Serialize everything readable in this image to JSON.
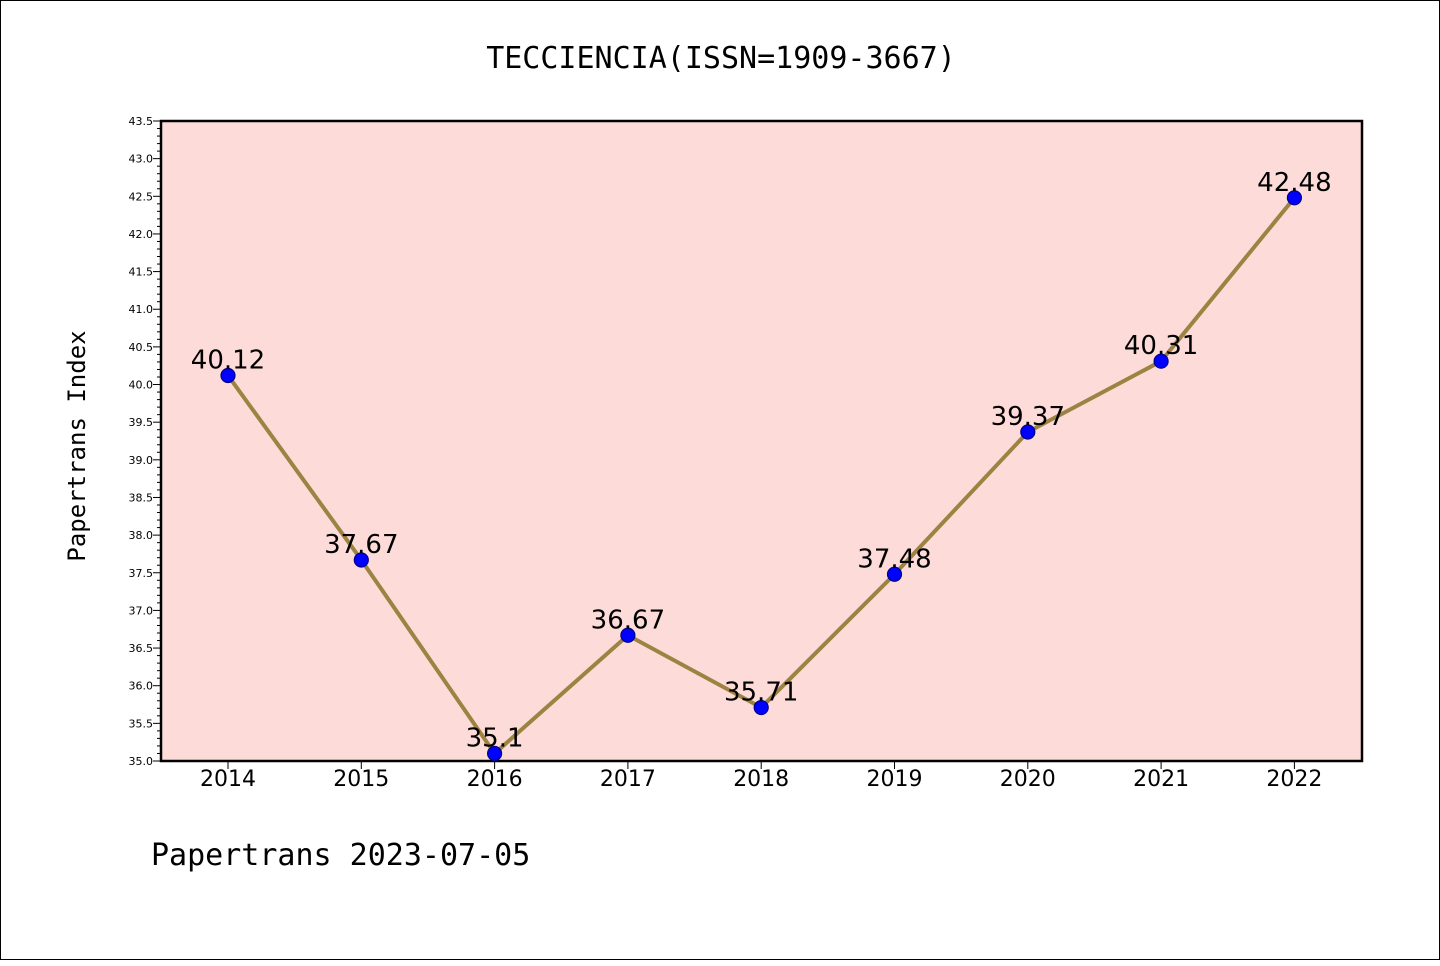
{
  "chart_data": {
    "type": "line",
    "title": "TECCIENCIA(ISSN=1909-3667)",
    "xlabel": "",
    "ylabel": "Papertrans Index",
    "categories": [
      "2014",
      "2015",
      "2016",
      "2017",
      "2018",
      "2019",
      "2020",
      "2021",
      "2022"
    ],
    "values": [
      40.12,
      37.67,
      35.1,
      36.67,
      35.71,
      37.48,
      39.37,
      40.31,
      42.48
    ],
    "data_labels": [
      "40.12",
      "37.67",
      "35.1",
      "36.67",
      "35.71",
      "37.48",
      "39.37",
      "40.31",
      "42.48"
    ],
    "ylim": [
      35.0,
      43.5
    ],
    "yticks": [
      "35.0",
      "35.5",
      "36.0",
      "36.5",
      "37.0",
      "37.5",
      "38.0",
      "38.5",
      "39.0",
      "39.5",
      "40.0",
      "40.5",
      "41.0",
      "41.5",
      "42.0",
      "42.5",
      "43.0",
      "43.5"
    ],
    "grid": false,
    "legend": "none",
    "colors": {
      "plot_background": "#fddbd9",
      "line": "#9c8341",
      "marker_fill": "#0000ff",
      "marker_edge": "#00008b"
    }
  },
  "footer": {
    "text": "Papertrans 2023-07-05"
  }
}
